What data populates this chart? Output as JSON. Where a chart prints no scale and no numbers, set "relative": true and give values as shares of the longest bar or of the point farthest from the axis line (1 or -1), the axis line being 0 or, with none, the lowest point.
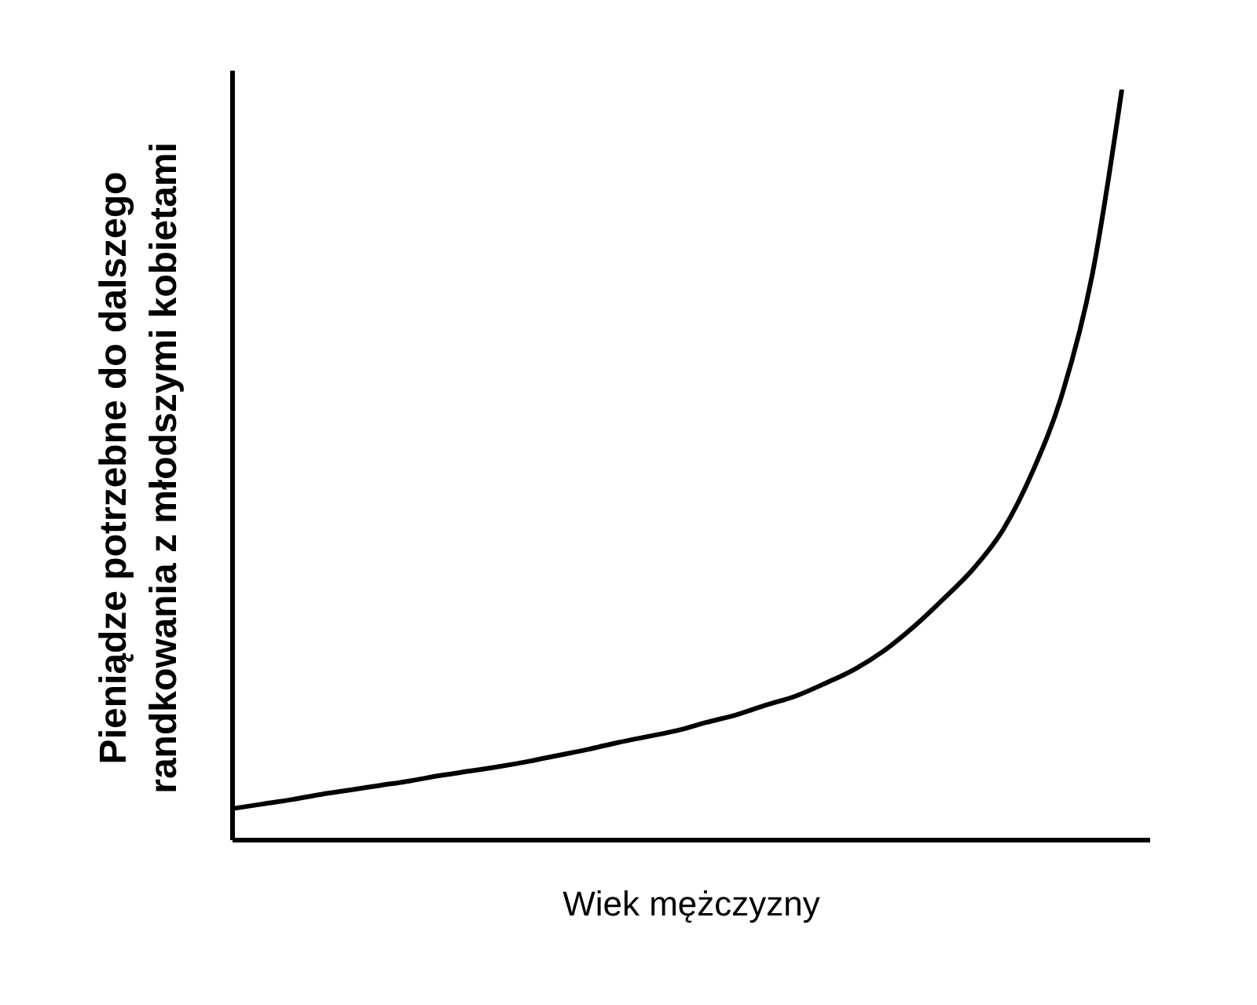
{
  "chart_data": {
    "type": "line",
    "relative": true,
    "xlabel": "Wiek mężczyzny",
    "ylabel": "Pieniądze potrzebne do dalszego\nrandkowania z młodszymi kobietami",
    "categories": [
      null,
      null,
      null,
      null,
      null,
      null,
      null,
      null,
      null,
      null,
      null,
      null,
      null,
      null,
      null,
      null,
      null,
      null,
      null,
      null,
      null,
      null,
      null,
      null,
      null,
      null,
      null,
      null,
      null,
      null,
      null
    ],
    "series": [
      {
        "color": "#000000",
        "values": [
          0.042,
          0.048,
          0.054,
          0.061,
          0.067,
          0.073,
          0.079,
          0.086,
          0.092,
          0.098,
          0.105,
          0.113,
          0.121,
          0.13,
          0.138,
          0.146,
          0.157,
          0.167,
          0.18,
          0.192,
          0.209,
          0.228,
          0.253,
          0.285,
          0.322,
          0.362,
          0.414,
          0.492,
          0.596,
          0.753,
          1
        ]
      }
    ]
  }
}
